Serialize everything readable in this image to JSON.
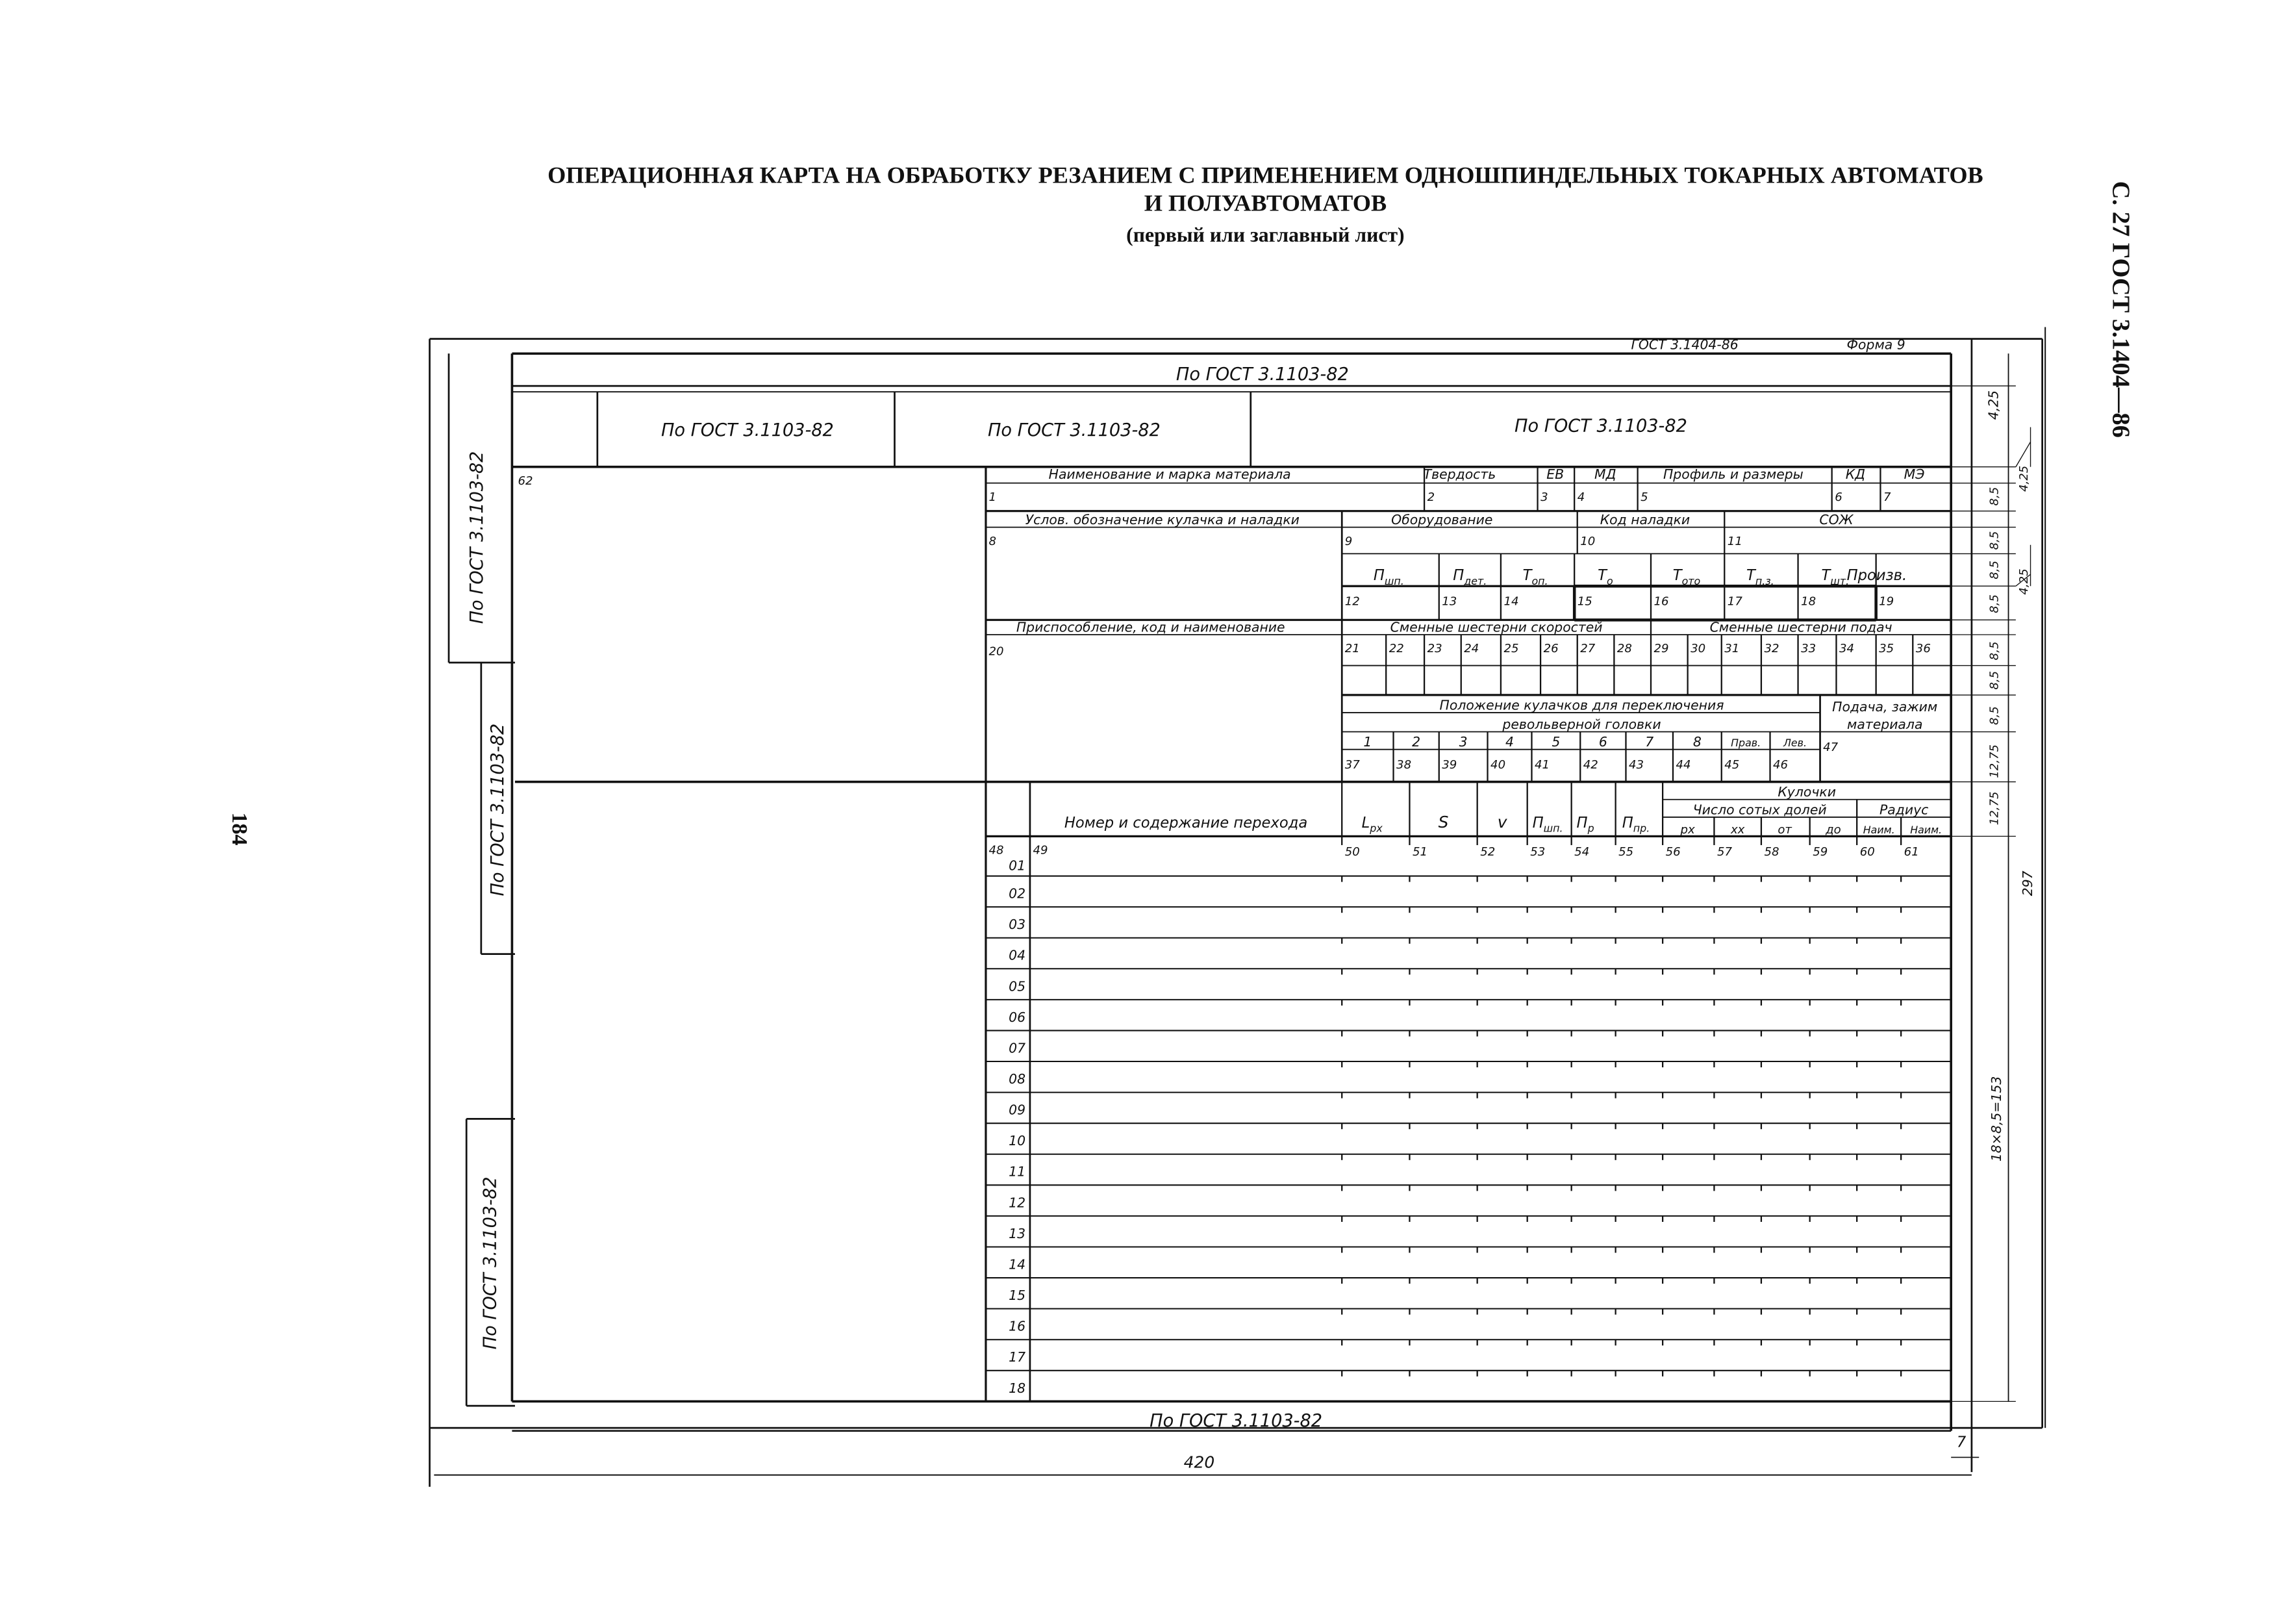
{
  "header": {
    "title_line1": "ОПЕРАЦИОННАЯ КАРТА НА ОБРАБОТКУ РЕЗАНИЕМ С ПРИМЕНЕНИЕМ ОДНОШПИНДЕЛЬНЫХ ТОКАРНЫХ АВТОМАТОВ",
    "title_line2": "И ПОЛУАВТОМАТОВ",
    "subtitle": "(первый или заглавный лист)",
    "page_ref": "С. 27 ГОСТ 3.1404—86",
    "page_number": "184"
  },
  "form": {
    "standard": "ГОСТ 3.1404-86",
    "form_no": "Форма 9",
    "ref": "По ГОСТ 3.1103-82",
    "corner_no": "62"
  },
  "labels": {
    "material_name": "Наименование и марка материала",
    "hardness": "Твердость",
    "ev": "ЕВ",
    "md": "МД",
    "profile": "Профиль и размеры",
    "kd": "КД",
    "me": "МЭ",
    "cam_setup": "Услов. обозначение кулачка и наладки",
    "equipment": "Оборудование",
    "setup_code": "Код наладки",
    "coolant": "СОЖ",
    "times": [
      {
        "base": "П",
        "sub": "шп."
      },
      {
        "base": "П",
        "sub": "дет."
      },
      {
        "base": "Т",
        "sub": "оп."
      },
      {
        "base": "Т",
        "sub": "о"
      },
      {
        "base": "Т",
        "sub": "ото"
      },
      {
        "base": "Т",
        "sub": "п.з."
      },
      {
        "base": "Т",
        "sub": "шт."
      },
      {
        "base": "Произв.",
        "sub": ""
      }
    ],
    "fixture": "Приспособление, код и наименование",
    "speed_gears": "Сменные шестерни скоростей",
    "feed_gears": "Сменные шестерни подач",
    "cam_position_1": "Положение кулачков для переключения",
    "cam_position_2": "револьверной головки",
    "feed_clamp_1": "Подача, зажим",
    "feed_clamp_2": "материала",
    "transition": "Номер и содержание перехода",
    "lpx": {
      "base": "L",
      "sub": "px"
    },
    "s": "S",
    "v": "v",
    "n_sp": {
      "base": "П",
      "sub": "шп."
    },
    "n_p": {
      "base": "П",
      "sub": "р"
    },
    "n_pr": {
      "base": "П",
      "sub": "пр."
    },
    "cams": "Кулочки",
    "hundredths": "Число сотых долей",
    "radius": "Радиус",
    "px": "рх",
    "xx": "хх",
    "from": "от",
    "to": "до",
    "min1": "Наим.",
    "min2": "Наим."
  },
  "fields": [
    "1",
    "2",
    "3",
    "4",
    "5",
    "6",
    "7",
    "8",
    "9",
    "10",
    "11",
    "12",
    "13",
    "14",
    "15",
    "16",
    "17",
    "18",
    "19",
    "20",
    "21",
    "22",
    "23",
    "24",
    "25",
    "26",
    "27",
    "28",
    "29",
    "30",
    "31",
    "32",
    "33",
    "34",
    "35",
    "36",
    "37",
    "38",
    "39",
    "40",
    "41",
    "42",
    "43",
    "44",
    "45",
    "46",
    "47",
    "48",
    "49",
    "50",
    "51",
    "52",
    "53",
    "54",
    "55",
    "56",
    "57",
    "58",
    "59",
    "60",
    "61"
  ],
  "cam_positions": [
    "1",
    "2",
    "3",
    "4",
    "5",
    "6",
    "7",
    "8",
    "Прав.",
    "Лев."
  ],
  "rows": [
    "01",
    "02",
    "03",
    "04",
    "05",
    "06",
    "07",
    "08",
    "09",
    "10",
    "11",
    "12",
    "13",
    "14",
    "15",
    "16",
    "17",
    "18"
  ],
  "dimensions": {
    "d425": "4,25",
    "d85": "8,5",
    "d1275": "12,75",
    "height": "297",
    "rows_total": "18×8,5=153",
    "width": "420",
    "margin": "7"
  }
}
